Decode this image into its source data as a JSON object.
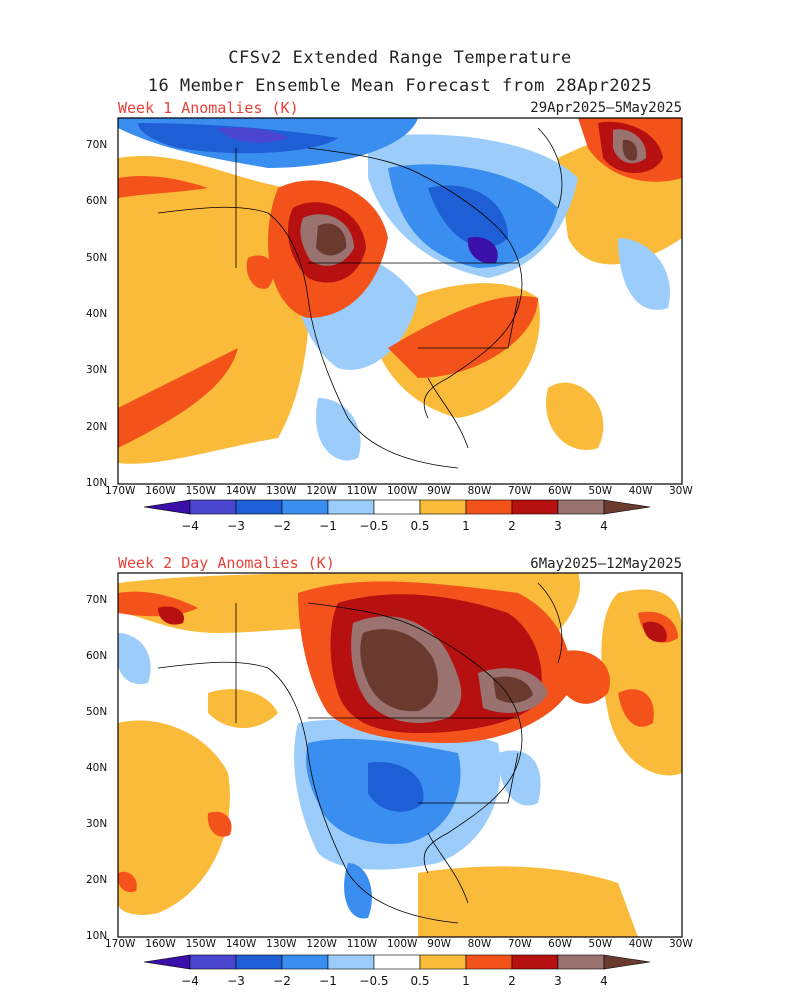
{
  "title_line1": "CFSv2 Extended Range Temperature",
  "title_line2": "16 Member Ensemble Mean Forecast from 28Apr2025",
  "panels": [
    {
      "label": "Week 1 Anomalies (K)",
      "dates": "29Apr2025–5May2025"
    },
    {
      "label": "Week 2 Day Anomalies (K)",
      "dates": "6May2025–12May2025"
    }
  ],
  "lat_ticks": [
    "70N",
    "60N",
    "50N",
    "40N",
    "30N",
    "20N",
    "10N"
  ],
  "lon_ticks": [
    "170W",
    "160W",
    "150W",
    "140W",
    "130W",
    "120W",
    "110W",
    "100W",
    "90W",
    "80W",
    "70W",
    "60W",
    "50W",
    "40W",
    "30W"
  ],
  "colorbar": {
    "labels": [
      "−4",
      "−3",
      "−2",
      "−1",
      "−0.5",
      "0.5",
      "1",
      "2",
      "3",
      "4"
    ],
    "colors": [
      "#3a10a8",
      "#4a46d0",
      "#1f5fd6",
      "#3a8ef0",
      "#9ccdfa",
      "#ffffff",
      "#fbbb3a",
      "#f4521b",
      "#b71010",
      "#9a7270",
      "#6b3a2e"
    ]
  }
}
